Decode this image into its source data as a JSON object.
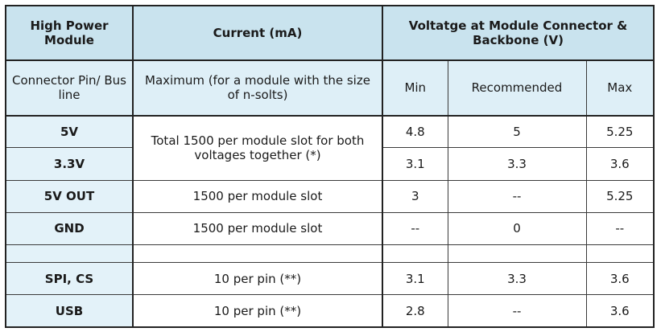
{
  "header": {
    "col1": "High Power Module",
    "col2": "Current (mA)",
    "col3": "Voltatge at Module Connector & Backbone (V)"
  },
  "subheader": {
    "col1": "Connector Pin/ Bus line",
    "col2": "Maximum (for a module with the size of n-solts)",
    "min": "Min",
    "recommended": "Recommended",
    "max": "Max"
  },
  "rows": [
    {
      "pin": "5V",
      "current": "Total 1500 per module slot for both voltages together (*)",
      "min": "4.8",
      "rec": "5",
      "max": "5.25"
    },
    {
      "pin": "3.3V",
      "current": "",
      "min": "3.1",
      "rec": "3.3",
      "max": "3.6"
    },
    {
      "pin": "5V OUT",
      "current": "1500 per module slot",
      "min": "3",
      "rec": "--",
      "max": "5.25"
    },
    {
      "pin": "GND",
      "current": "1500 per module slot",
      "min": "--",
      "rec": "0",
      "max": "--"
    },
    {
      "pin": "",
      "current": "",
      "min": "",
      "rec": "",
      "max": ""
    },
    {
      "pin": "SPI, CS",
      "current": "10 per pin (**)",
      "min": "3.1",
      "rec": "3.3",
      "max": "3.6"
    },
    {
      "pin": "USB",
      "current": "10 per pin (**)",
      "min": "2.8",
      "rec": "--",
      "max": "3.6"
    }
  ]
}
